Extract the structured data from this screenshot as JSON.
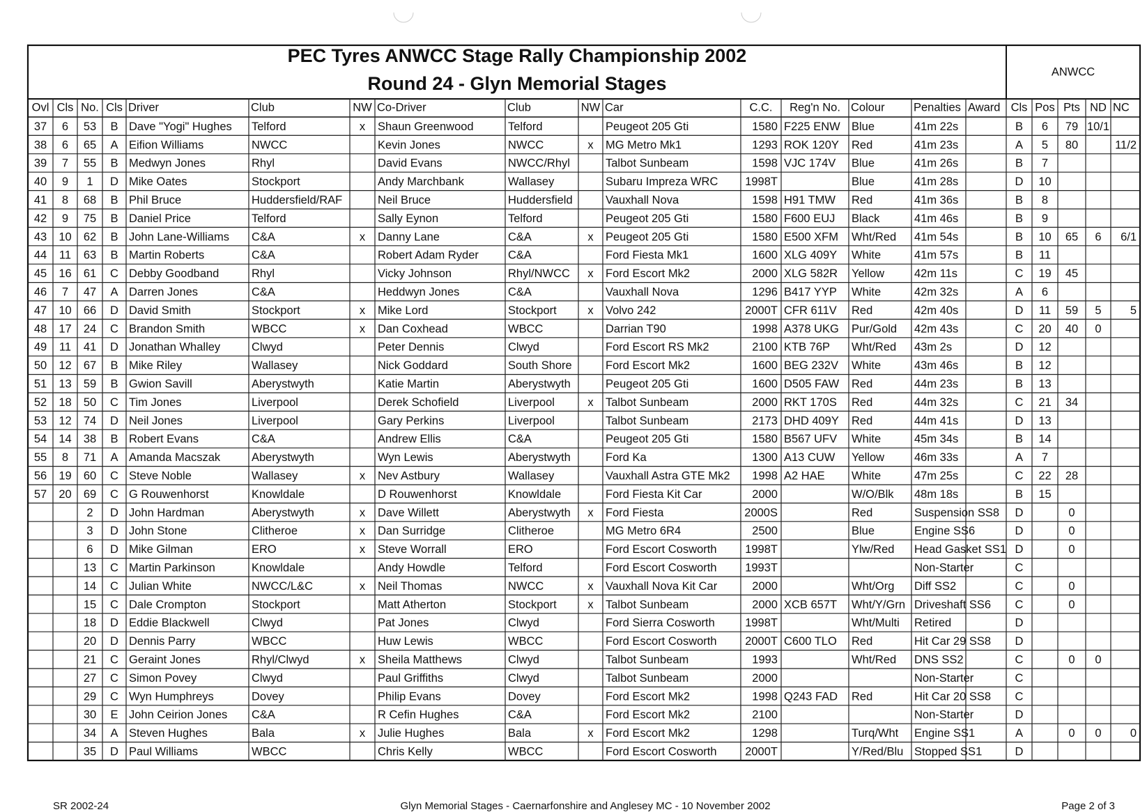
{
  "header": {
    "title_line1": "PEC Tyres ANWCC Stage Rally Championship 2002",
    "title_line2": "Round 24 - Glyn Memorial Stages",
    "group": "ANWCC"
  },
  "table": {
    "columns": [
      "Ovl",
      "Cls",
      "No.",
      "Cls",
      "Driver",
      "Club",
      "NW",
      "Co-Driver",
      "Club",
      "NW",
      "Car",
      "C.C.",
      "Reg'n No.",
      "Colour",
      "Penalties",
      "Award",
      "Cls",
      "Pos",
      "Pts",
      "ND",
      "NC"
    ],
    "rows": [
      [
        37,
        6,
        53,
        "B",
        "Dave \"Yogi\" Hughes",
        "Telford",
        "x",
        "Shaun Greenwood",
        "Telford",
        null,
        "Peugeot 205 Gti",
        1580,
        "F225 ENW",
        "Blue",
        "41m 22s",
        null,
        "B",
        6,
        79,
        "10/1",
        null
      ],
      [
        38,
        6,
        65,
        "A",
        "Eifion Williams",
        "NWCC",
        null,
        "Kevin Jones",
        "NWCC",
        "x",
        "MG Metro Mk1",
        1293,
        "ROK 120Y",
        "Red",
        "41m 23s",
        null,
        "A",
        5,
        80,
        null,
        "11/2"
      ],
      [
        39,
        7,
        55,
        "B",
        "Medwyn Jones",
        "Rhyl",
        null,
        "David Evans",
        "NWCC/Rhyl",
        null,
        "Talbot Sunbeam",
        1598,
        "VJC 174V",
        "Blue",
        "41m 26s",
        null,
        "B",
        7,
        null,
        null,
        null
      ],
      [
        40,
        9,
        1,
        "D",
        "Mike Oates",
        "Stockport",
        null,
        "Andy Marchbank",
        "Wallasey",
        null,
        "Subaru Impreza WRC",
        "1998T",
        null,
        "Blue",
        "41m 28s",
        null,
        "D",
        10,
        null,
        null,
        null
      ],
      [
        41,
        8,
        68,
        "B",
        "Phil Bruce",
        "Huddersfield/RAF",
        null,
        "Neil Bruce",
        "Huddersfield",
        null,
        "Vauxhall Nova",
        1598,
        "H91 TMW",
        "Red",
        "41m 36s",
        null,
        "B",
        8,
        null,
        null,
        null
      ],
      [
        42,
        9,
        75,
        "B",
        "Daniel Price",
        "Telford",
        null,
        "Sally Eynon",
        "Telford",
        null,
        "Peugeot 205 Gti",
        1580,
        "F600 EUJ",
        "Black",
        "41m 46s",
        null,
        "B",
        9,
        null,
        null,
        null
      ],
      [
        43,
        10,
        62,
        "B",
        "John Lane-Williams",
        "C&A",
        "x",
        "Danny Lane",
        "C&A",
        "x",
        "Peugeot 205 Gti",
        1580,
        "E500 XFM",
        "Wht/Red",
        "41m 54s",
        null,
        "B",
        10,
        65,
        6,
        "6/1"
      ],
      [
        44,
        11,
        63,
        "B",
        "Martin Roberts",
        "C&A",
        null,
        "Robert Adam Ryder",
        "C&A",
        null,
        "Ford Fiesta Mk1",
        1600,
        "XLG 409Y",
        "White",
        "41m 57s",
        null,
        "B",
        11,
        null,
        null,
        null
      ],
      [
        45,
        16,
        61,
        "C",
        "Debby Goodband",
        "Rhyl",
        null,
        "Vicky Johnson",
        "Rhyl/NWCC",
        "x",
        "Ford Escort Mk2",
        2000,
        "XLG 582R",
        "Yellow",
        "42m 11s",
        null,
        "C",
        19,
        45,
        null,
        null
      ],
      [
        46,
        7,
        47,
        "A",
        "Darren Jones",
        "C&A",
        null,
        "Heddwyn Jones",
        "C&A",
        null,
        "Vauxhall Nova",
        1296,
        "B417 YYP",
        "White",
        "42m 32s",
        null,
        "A",
        6,
        null,
        null,
        null
      ],
      [
        47,
        10,
        66,
        "D",
        "David Smith",
        "Stockport",
        "x",
        "Mike Lord",
        "Stockport",
        "x",
        "Volvo 242",
        "2000T",
        "CFR 611V",
        "Red",
        "42m 40s",
        null,
        "D",
        11,
        59,
        5,
        5
      ],
      [
        48,
        17,
        24,
        "C",
        "Brandon Smith",
        "WBCC",
        "x",
        "Dan Coxhead",
        "WBCC",
        null,
        "Darrian T90",
        1998,
        "A378 UKG",
        "Pur/Gold",
        "42m 43s",
        null,
        "C",
        20,
        40,
        0,
        null
      ],
      [
        49,
        11,
        41,
        "D",
        "Jonathan Whalley",
        "Clwyd",
        null,
        "Peter Dennis",
        "Clwyd",
        null,
        "Ford Escort RS Mk2",
        2100,
        "KTB 76P",
        "Wht/Red",
        "43m 2s",
        null,
        "D",
        12,
        null,
        null,
        null
      ],
      [
        50,
        12,
        67,
        "B",
        "Mike Riley",
        "Wallasey",
        null,
        "Nick Goddard",
        "South Shore",
        null,
        "Ford Escort Mk2",
        1600,
        "BEG 232V",
        "White",
        "43m 46s",
        null,
        "B",
        12,
        null,
        null,
        null
      ],
      [
        51,
        13,
        59,
        "B",
        "Gwion Savill",
        "Aberystwyth",
        null,
        "Katie Martin",
        "Aberystwyth",
        null,
        "Peugeot 205 Gti",
        1600,
        "D505 FAW",
        "Red",
        "44m 23s",
        null,
        "B",
        13,
        null,
        null,
        null
      ],
      [
        52,
        18,
        50,
        "C",
        "Tim Jones",
        "Liverpool",
        null,
        "Derek Schofield",
        "Liverpool",
        "x",
        "Talbot Sunbeam",
        2000,
        "RKT 170S",
        "Red",
        "44m 32s",
        null,
        "C",
        21,
        34,
        null,
        null
      ],
      [
        53,
        12,
        74,
        "D",
        "Neil Jones",
        "Liverpool",
        null,
        "Gary Perkins",
        "Liverpool",
        null,
        "Talbot Sunbeam",
        2173,
        "DHD 409Y",
        "Red",
        "44m 41s",
        null,
        "D",
        13,
        null,
        null,
        null
      ],
      [
        54,
        14,
        38,
        "B",
        "Robert Evans",
        "C&A",
        null,
        "Andrew Ellis",
        "C&A",
        null,
        "Peugeot 205 Gti",
        1580,
        "B567 UFV",
        "White",
        "45m 34s",
        null,
        "B",
        14,
        null,
        null,
        null
      ],
      [
        55,
        8,
        71,
        "A",
        "Amanda Macszak",
        "Aberystwyth",
        null,
        "Wyn Lewis",
        "Aberystwyth",
        null,
        "Ford Ka",
        1300,
        "A13 CUW",
        "Yellow",
        "46m 33s",
        null,
        "A",
        7,
        null,
        null,
        null
      ],
      [
        56,
        19,
        60,
        "C",
        "Steve Noble",
        "Wallasey",
        "x",
        "Nev Astbury",
        "Wallasey",
        null,
        "Vauxhall Astra GTE Mk2",
        1998,
        "A2 HAE",
        "White",
        "47m 25s",
        null,
        "C",
        22,
        28,
        null,
        null
      ],
      [
        57,
        20,
        69,
        "C",
        "G Rouwenhorst",
        "Knowldale",
        null,
        "D Rouwenhorst",
        "Knowldale",
        null,
        "Ford Fiesta Kit Car",
        2000,
        null,
        "W/O/Blk",
        "48m 18s",
        null,
        "B",
        15,
        null,
        null,
        null
      ],
      [
        null,
        null,
        2,
        "D",
        "John Hardman",
        "Aberystwyth",
        "x",
        "Dave Willett",
        "Aberystwyth",
        "x",
        "Ford Fiesta",
        "2000S",
        null,
        "Red",
        "Suspension SS8",
        null,
        "D",
        null,
        0,
        null,
        null
      ],
      [
        null,
        null,
        3,
        "D",
        "John Stone",
        "Clitheroe",
        "x",
        "Dan Surridge",
        "Clitheroe",
        null,
        "MG Metro 6R4",
        2500,
        null,
        "Blue",
        "Engine SS6",
        null,
        "D",
        null,
        0,
        null,
        null
      ],
      [
        null,
        null,
        6,
        "D",
        "Mike Gilman",
        "ERO",
        "x",
        "Steve Worrall",
        "ERO",
        null,
        "Ford Escort Cosworth",
        "1998T",
        null,
        "Ylw/Red",
        "Head Gasket SS1",
        null,
        "D",
        null,
        0,
        null,
        null
      ],
      [
        null,
        null,
        13,
        "C",
        "Martin Parkinson",
        "Knowldale",
        null,
        "Andy Howdle",
        "Telford",
        null,
        "Ford Escort Cosworth",
        "1993T",
        null,
        null,
        "Non-Starter",
        null,
        "C",
        null,
        null,
        null,
        null
      ],
      [
        null,
        null,
        14,
        "C",
        "Julian White",
        "NWCC/L&C",
        "x",
        "Neil Thomas",
        "NWCC",
        "x",
        "Vauxhall Nova Kit Car",
        2000,
        null,
        "Wht/Org",
        "Diff SS2",
        null,
        "C",
        null,
        0,
        null,
        null
      ],
      [
        null,
        null,
        15,
        "C",
        "Dale Crompton",
        "Stockport",
        null,
        "Matt Atherton",
        "Stockport",
        "x",
        "Talbot Sunbeam",
        2000,
        "XCB 657T",
        "Wht/Y/Grn",
        "Driveshaft SS6",
        null,
        "C",
        null,
        0,
        null,
        null
      ],
      [
        null,
        null,
        18,
        "D",
        "Eddie Blackwell",
        "Clwyd",
        null,
        "Pat Jones",
        "Clwyd",
        null,
        "Ford Sierra Cosworth",
        "1998T",
        null,
        "Wht/Multi",
        "Retired",
        null,
        "D",
        null,
        null,
        null,
        null
      ],
      [
        null,
        null,
        20,
        "D",
        "Dennis Parry",
        "WBCC",
        null,
        "Huw Lewis",
        "WBCC",
        null,
        "Ford Escort Cosworth",
        "2000T",
        "C600 TLO",
        "Red",
        "Hit Car 29 SS8",
        null,
        "D",
        null,
        null,
        null,
        null
      ],
      [
        null,
        null,
        21,
        "C",
        "Geraint Jones",
        "Rhyl/Clwyd",
        "x",
        "Sheila Matthews",
        "Clwyd",
        null,
        "Talbot Sunbeam",
        1993,
        null,
        "Wht/Red",
        "DNS SS2",
        null,
        "C",
        null,
        0,
        0,
        null
      ],
      [
        null,
        null,
        27,
        "C",
        "Simon Povey",
        "Clwyd",
        null,
        "Paul Griffiths",
        "Clwyd",
        null,
        "Talbot Sunbeam",
        2000,
        null,
        null,
        "Non-Starter",
        null,
        "C",
        null,
        null,
        null,
        null
      ],
      [
        null,
        null,
        29,
        "C",
        "Wyn Humphreys",
        "Dovey",
        null,
        "Philip Evans",
        "Dovey",
        null,
        "Ford Escort Mk2",
        1998,
        "Q243 FAD",
        "Red",
        "Hit Car 20 SS8",
        null,
        "C",
        null,
        null,
        null,
        null
      ],
      [
        null,
        null,
        30,
        "E",
        "John Ceirion Jones",
        "C&A",
        null,
        "R Cefin Hughes",
        "C&A",
        null,
        "Ford Escort Mk2",
        2100,
        null,
        null,
        "Non-Starter",
        null,
        "D",
        null,
        null,
        null,
        null
      ],
      [
        null,
        null,
        34,
        "A",
        "Steven Hughes",
        "Bala",
        "x",
        "Julie Hughes",
        "Bala",
        "x",
        "Ford Escort Mk2",
        1298,
        null,
        "Turq/Wht",
        "Engine SS1",
        null,
        "A",
        null,
        0,
        0,
        0
      ],
      [
        null,
        null,
        35,
        "D",
        "Paul Williams",
        "WBCC",
        null,
        "Chris Kelly",
        "WBCC",
        null,
        "Ford Escort Cosworth",
        "2000T",
        null,
        "Y/Red/Blu",
        "Stopped SS1",
        null,
        "D",
        null,
        null,
        null,
        null
      ]
    ]
  },
  "footer": {
    "left": "SR 2002-24",
    "center": "Glyn Memorial Stages - Caernarfonshire and Anglesey MC - 10 November 2002",
    "right": "Page 2 of 3"
  }
}
